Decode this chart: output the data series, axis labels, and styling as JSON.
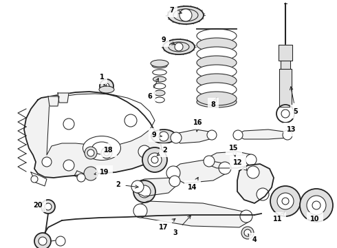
{
  "bg_color": "#ffffff",
  "line_color": "#222222",
  "label_color": "#000000",
  "figsize": [
    4.9,
    3.6
  ],
  "dpi": 100,
  "lw_main": 1.3,
  "lw_thin": 0.75,
  "lw_thick": 2.0,
  "label_fontsize": 7.0,
  "arrow_lw": 0.7,
  "gray_fill": "#f2f2f2",
  "mid_gray": "#e0e0e0",
  "dark_gray": "#c8c8c8"
}
